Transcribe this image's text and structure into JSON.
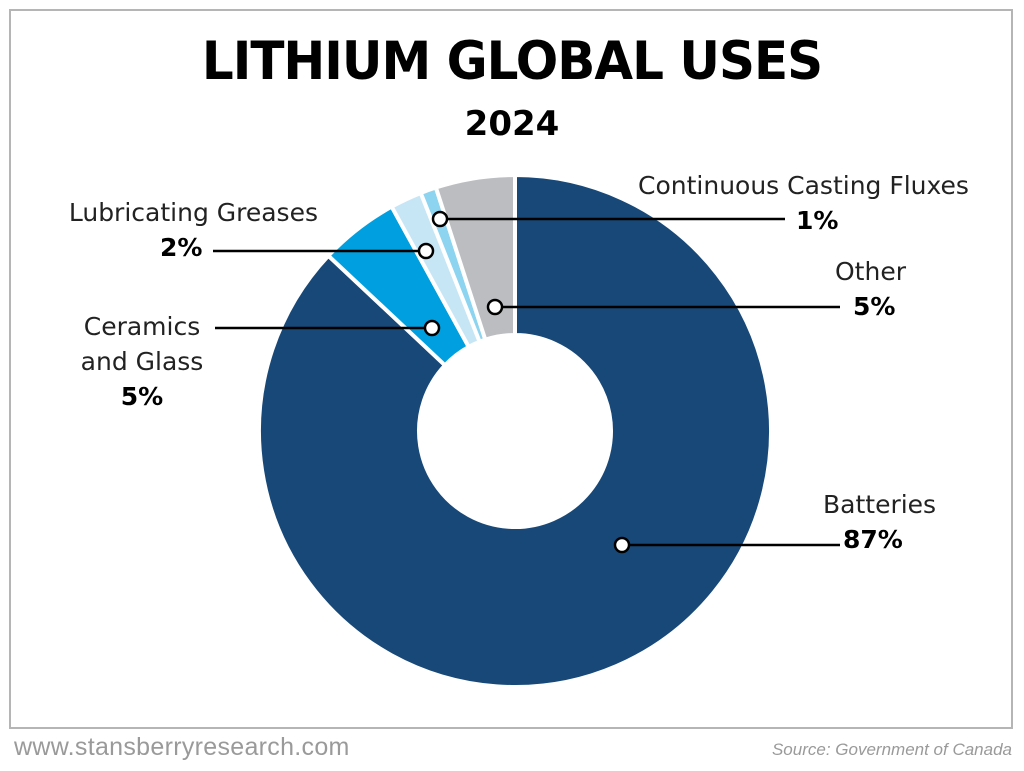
{
  "chart_data": {
    "type": "pie",
    "donut": true,
    "title": "LITHIUM GLOBAL USES",
    "subtitle": "2024",
    "slices": [
      {
        "label": "Batteries",
        "value": 87,
        "display": "87%",
        "color": "#174878"
      },
      {
        "label": "Ceramics and Glass",
        "value": 5,
        "display": "5%",
        "color": "#009fdf"
      },
      {
        "label": "Lubricating Greases",
        "value": 2,
        "display": "2%",
        "color": "#c6e6f5"
      },
      {
        "label": "Continuous Casting Fluxes",
        "value": 1,
        "display": "1%",
        "color": "#8dd4f0"
      },
      {
        "label": "Other",
        "value": 5,
        "display": "5%",
        "color": "#bcbdc0"
      }
    ],
    "legend": "none (callout labels)"
  },
  "footer": {
    "website": "www.stansberryresearch.com",
    "source": "Source: Government of Canada"
  },
  "labels": {
    "ceramics_line1": "Ceramics",
    "ceramics_line2": "and Glass"
  }
}
